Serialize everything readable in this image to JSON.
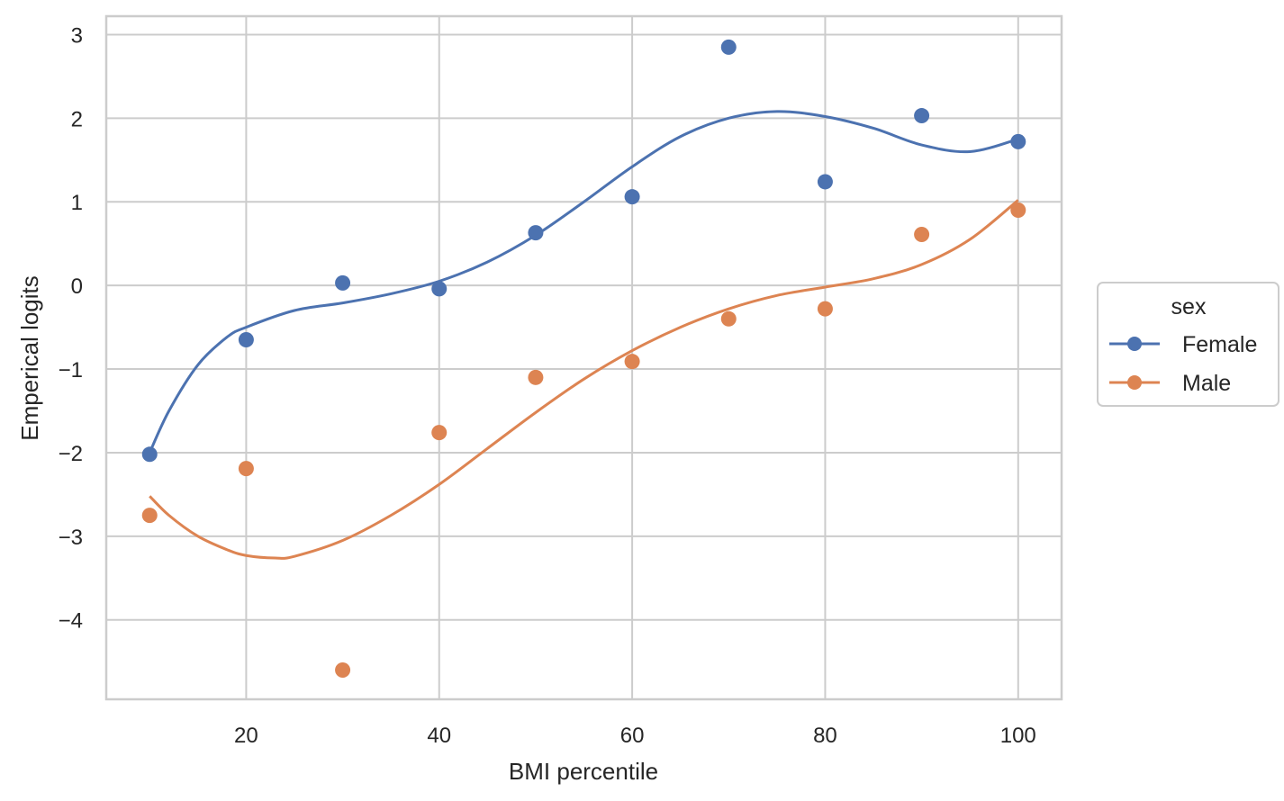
{
  "chart_data": {
    "type": "scatter",
    "xlabel": "BMI percentile",
    "ylabel": "Emperical logits",
    "xlim": [
      5.5,
      104.5
    ],
    "ylim": [
      -4.95,
      3.22
    ],
    "xticks": [
      20,
      40,
      60,
      80,
      100
    ],
    "yticks": [
      3,
      2,
      1,
      0,
      -1,
      -2,
      -3,
      -4
    ],
    "ytick_labels": [
      "3",
      "2",
      "1",
      "0",
      "−1",
      "−2",
      "−3",
      "−4"
    ],
    "grid": true,
    "legend": {
      "title": "sex",
      "placement": "right-outside"
    },
    "series": [
      {
        "name": "Female",
        "color": "#4c72b0",
        "x": [
          10,
          20,
          30,
          40,
          50,
          60,
          70,
          80,
          90,
          100
        ],
        "y": [
          -2.02,
          -0.65,
          0.03,
          -0.04,
          0.63,
          1.06,
          2.85,
          1.24,
          2.03,
          1.72
        ],
        "smooth_x": [
          10,
          12,
          15,
          18,
          20,
          25,
          30,
          35,
          40,
          45,
          50,
          55,
          60,
          65,
          70,
          75,
          80,
          85,
          90,
          95,
          100
        ],
        "smooth_y": [
          -2.0,
          -1.5,
          -0.95,
          -0.62,
          -0.5,
          -0.3,
          -0.21,
          -0.1,
          0.05,
          0.28,
          0.6,
          1.0,
          1.42,
          1.78,
          2.0,
          2.08,
          2.02,
          1.88,
          1.68,
          1.6,
          1.75
        ]
      },
      {
        "name": "Male",
        "color": "#dd8452",
        "x": [
          10,
          20,
          30,
          40,
          50,
          60,
          70,
          80,
          90,
          100
        ],
        "y": [
          -2.75,
          -2.19,
          -4.6,
          -1.76,
          -1.1,
          -0.91,
          -0.4,
          -0.28,
          0.61,
          0.9
        ],
        "smooth_x": [
          10,
          12,
          15,
          18,
          20,
          23,
          25,
          30,
          35,
          40,
          45,
          50,
          55,
          60,
          65,
          70,
          75,
          80,
          85,
          90,
          95,
          100
        ],
        "smooth_y": [
          -2.52,
          -2.75,
          -3.0,
          -3.16,
          -3.23,
          -3.26,
          -3.24,
          -3.05,
          -2.75,
          -2.38,
          -1.95,
          -1.52,
          -1.12,
          -0.78,
          -0.5,
          -0.28,
          -0.12,
          -0.02,
          0.08,
          0.25,
          0.55,
          1.02
        ]
      }
    ]
  }
}
